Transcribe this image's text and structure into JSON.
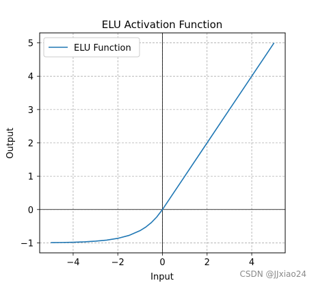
{
  "chart_data": {
    "type": "line",
    "title": "ELU Activation Function",
    "xlabel": "Input",
    "ylabel": "Output",
    "xlim": [
      -5.5,
      5.5
    ],
    "ylim": [
      -1.3,
      5.3
    ],
    "xticks": [
      -4,
      -2,
      0,
      2,
      4
    ],
    "yticks": [
      -1,
      0,
      1,
      2,
      3,
      4,
      5
    ],
    "xtick_labels": [
      "−4",
      "−2",
      "0",
      "2",
      "4"
    ],
    "ytick_labels": [
      "−1",
      "0",
      "1",
      "2",
      "3",
      "4",
      "5"
    ],
    "grid": true,
    "legend_position": "top-left",
    "reference_lines": {
      "x": 0,
      "y": 0
    },
    "series": [
      {
        "name": "ELU Function",
        "color": "#1f77b4",
        "x": [
          -5,
          -4.5,
          -4,
          -3.5,
          -3,
          -2.5,
          -2,
          -1.5,
          -1,
          -0.75,
          -0.5,
          -0.25,
          0,
          1,
          2,
          3,
          4,
          5
        ],
        "y": [
          -0.993,
          -0.989,
          -0.982,
          -0.97,
          -0.95,
          -0.918,
          -0.865,
          -0.777,
          -0.632,
          -0.528,
          -0.393,
          -0.221,
          0,
          1,
          2,
          3,
          4,
          5
        ]
      }
    ]
  },
  "watermark": "CSDN @JJxiao24"
}
